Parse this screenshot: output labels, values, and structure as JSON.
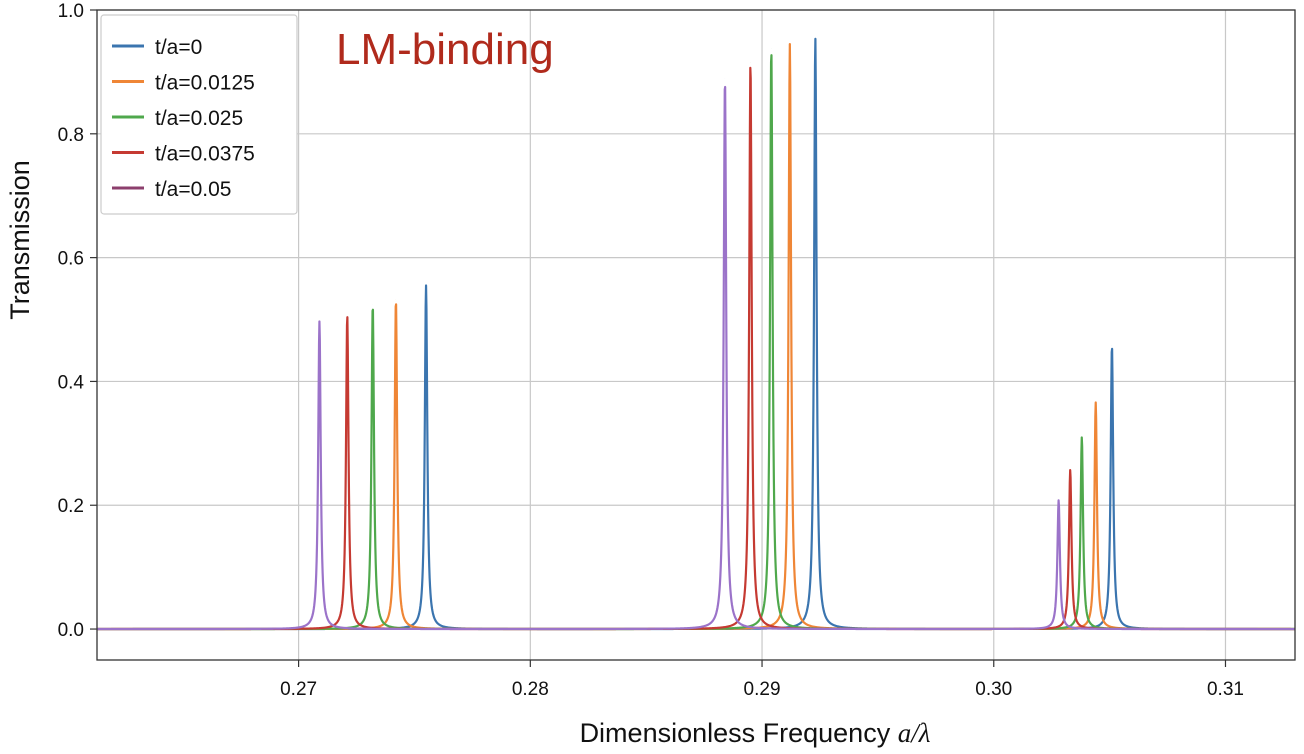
{
  "chart_data": {
    "type": "line",
    "title": "",
    "annotation": "LM-binding",
    "annotation_color": "#b02a1c",
    "xlabel": "Dimensionless Frequency",
    "xlabel_math": "a/λ",
    "ylabel": "Transmission",
    "xlim": [
      0.2613,
      0.313
    ],
    "ylim": [
      -0.05,
      1.0
    ],
    "x_ticks": [
      0.27,
      0.28,
      0.29,
      0.3,
      0.31
    ],
    "x_tick_labels": [
      "0.27",
      "0.28",
      "0.29",
      "0.30",
      "0.31"
    ],
    "y_ticks": [
      0.0,
      0.2,
      0.4,
      0.6,
      0.8,
      1.0
    ],
    "y_tick_labels": [
      "0.0",
      "0.2",
      "0.4",
      "0.6",
      "0.8",
      "1.0"
    ],
    "grid": true,
    "legend_position": "top-left",
    "series": [
      {
        "name": "t/a=0",
        "color": "#3b75af",
        "peaks": [
          {
            "x": 0.2755,
            "y": 0.555
          },
          {
            "x": 0.2923,
            "y": 0.955
          },
          {
            "x": 0.3051,
            "y": 0.458
          }
        ]
      },
      {
        "name": "t/a=0.0125",
        "color": "#ef8636",
        "peaks": [
          {
            "x": 0.2742,
            "y": 0.532
          },
          {
            "x": 0.2912,
            "y": 0.945
          },
          {
            "x": 0.3044,
            "y": 0.366
          }
        ]
      },
      {
        "name": "t/a=0.025",
        "color": "#4fa84c",
        "peaks": [
          {
            "x": 0.2732,
            "y": 0.524
          },
          {
            "x": 0.2904,
            "y": 0.938
          },
          {
            "x": 0.3038,
            "y": 0.31
          }
        ]
      },
      {
        "name": "t/a=0.0375",
        "color": "#c53a32",
        "peaks": [
          {
            "x": 0.2721,
            "y": 0.507
          },
          {
            "x": 0.2895,
            "y": 0.915
          },
          {
            "x": 0.3033,
            "y": 0.257
          }
        ]
      },
      {
        "name": "t/a=0.05",
        "color": "#9b73c9",
        "legend_color": "#8c3f6d",
        "peaks": [
          {
            "x": 0.2709,
            "y": 0.497
          },
          {
            "x": 0.2884,
            "y": 0.889
          },
          {
            "x": 0.3028,
            "y": 0.208
          }
        ]
      }
    ]
  }
}
